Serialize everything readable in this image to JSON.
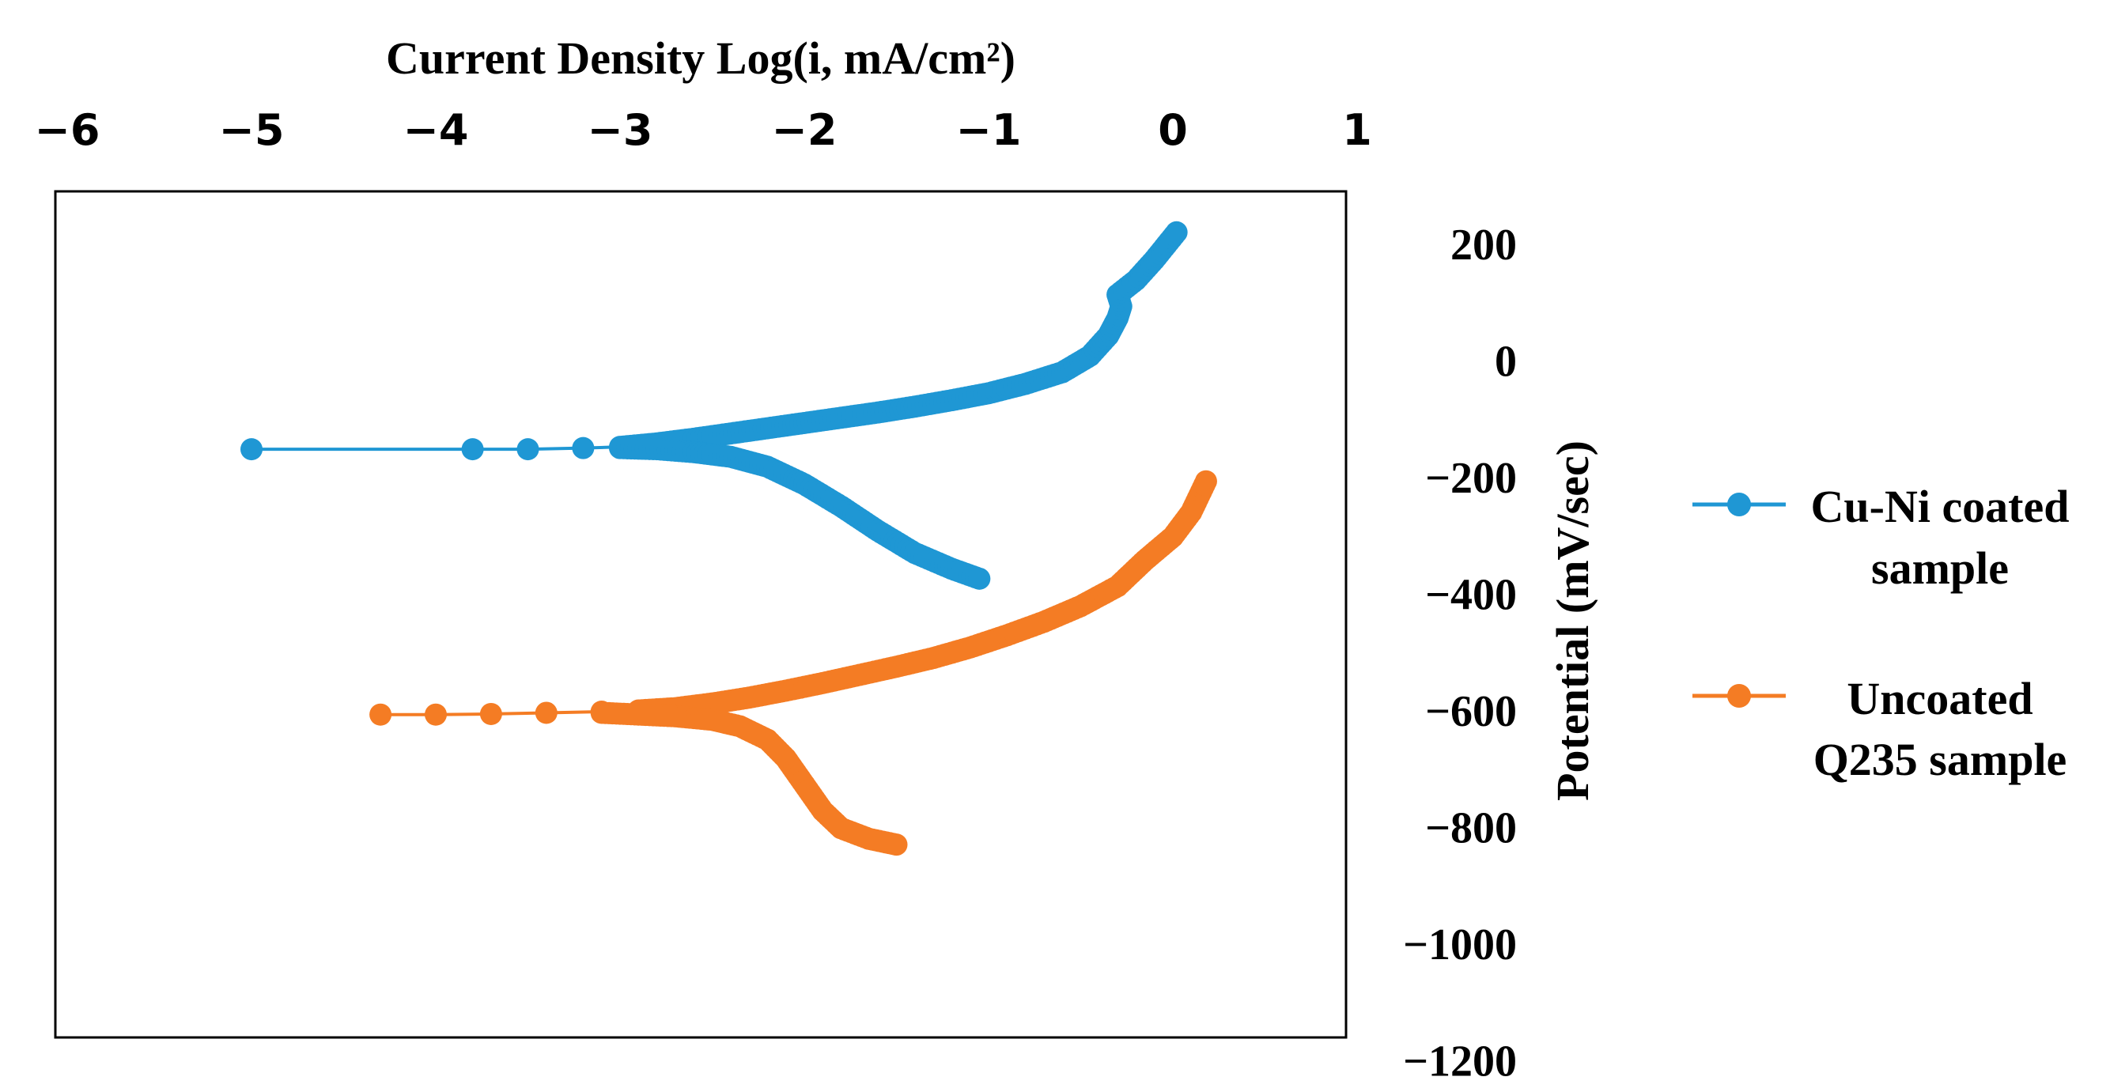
{
  "chart_data": {
    "type": "scatter",
    "title": "",
    "xlabel": "Current Density Log(i, mA/cm²)",
    "ylabel": "Potential (mV/sec)",
    "xlim": [
      -6,
      1
    ],
    "ylim": [
      -1200,
      300
    ],
    "x_axis_position": "top",
    "y_axis_position": "right",
    "x_ticks": [
      -6,
      -5,
      -4,
      -3,
      -2,
      -1,
      0,
      1
    ],
    "x_tick_labels": [
      "−6",
      "−5",
      "−4",
      "−3",
      "−2",
      "−1",
      "0",
      "1"
    ],
    "y_ticks": [
      200,
      0,
      -200,
      -400,
      -600,
      -800,
      -1000,
      -1200
    ],
    "y_tick_labels": [
      "200",
      "0",
      "−200",
      "−400",
      "−600",
      "−800",
      "−1000",
      "−1200"
    ],
    "grid": false,
    "legend_position": "right",
    "series": [
      {
        "name": "Cu-Ni coated sample",
        "legend_label_lines": [
          "Cu-Ni coated",
          "sample"
        ],
        "color": "#1f97d4",
        "anodic_branch": [
          [
            -5.0,
            -150
          ],
          [
            -3.8,
            -150
          ],
          [
            -3.5,
            -150
          ],
          [
            -3.2,
            -148
          ],
          [
            -3.0,
            -146
          ],
          [
            -2.8,
            -140
          ],
          [
            -2.6,
            -132
          ],
          [
            -2.4,
            -123
          ],
          [
            -2.2,
            -114
          ],
          [
            -2.0,
            -105
          ],
          [
            -1.8,
            -96
          ],
          [
            -1.6,
            -87
          ],
          [
            -1.4,
            -77
          ],
          [
            -1.2,
            -66
          ],
          [
            -1.0,
            -54
          ],
          [
            -0.8,
            -38
          ],
          [
            -0.6,
            -18
          ],
          [
            -0.45,
            10
          ],
          [
            -0.35,
            45
          ],
          [
            -0.3,
            75
          ],
          [
            -0.28,
            95
          ],
          [
            -0.3,
            115
          ],
          [
            -0.2,
            140
          ],
          [
            -0.1,
            175
          ],
          [
            0.02,
            222
          ]
        ],
        "cathodic_branch": [
          [
            -3.0,
            -148
          ],
          [
            -2.8,
            -150
          ],
          [
            -2.6,
            -155
          ],
          [
            -2.4,
            -163
          ],
          [
            -2.2,
            -180
          ],
          [
            -2.0,
            -210
          ],
          [
            -1.8,
            -248
          ],
          [
            -1.6,
            -290
          ],
          [
            -1.4,
            -328
          ],
          [
            -1.2,
            -355
          ],
          [
            -1.05,
            -372
          ]
        ]
      },
      {
        "name": "Uncoated Q235 sample",
        "legend_label_lines": [
          "Uncoated",
          "Q235 sample"
        ],
        "color": "#f47c24",
        "anodic_branch": [
          [
            -4.3,
            -605
          ],
          [
            -4.0,
            -605
          ],
          [
            -3.7,
            -604
          ],
          [
            -3.4,
            -602
          ],
          [
            -3.1,
            -600
          ],
          [
            -2.9,
            -598
          ],
          [
            -2.7,
            -594
          ],
          [
            -2.5,
            -586
          ],
          [
            -2.3,
            -576
          ],
          [
            -2.1,
            -564
          ],
          [
            -1.9,
            -551
          ],
          [
            -1.7,
            -537
          ],
          [
            -1.5,
            -523
          ],
          [
            -1.3,
            -508
          ],
          [
            -1.1,
            -490
          ],
          [
            -0.9,
            -469
          ],
          [
            -0.7,
            -446
          ],
          [
            -0.5,
            -419
          ],
          [
            -0.3,
            -385
          ],
          [
            -0.15,
            -340
          ],
          [
            0.0,
            -300
          ],
          [
            0.1,
            -258
          ],
          [
            0.18,
            -205
          ]
        ],
        "cathodic_branch": [
          [
            -3.1,
            -602
          ],
          [
            -2.9,
            -605
          ],
          [
            -2.7,
            -608
          ],
          [
            -2.5,
            -614
          ],
          [
            -2.35,
            -625
          ],
          [
            -2.2,
            -648
          ],
          [
            -2.1,
            -680
          ],
          [
            -2.0,
            -725
          ],
          [
            -1.9,
            -770
          ],
          [
            -1.8,
            -800
          ],
          [
            -1.65,
            -818
          ],
          [
            -1.5,
            -828
          ]
        ]
      }
    ]
  }
}
